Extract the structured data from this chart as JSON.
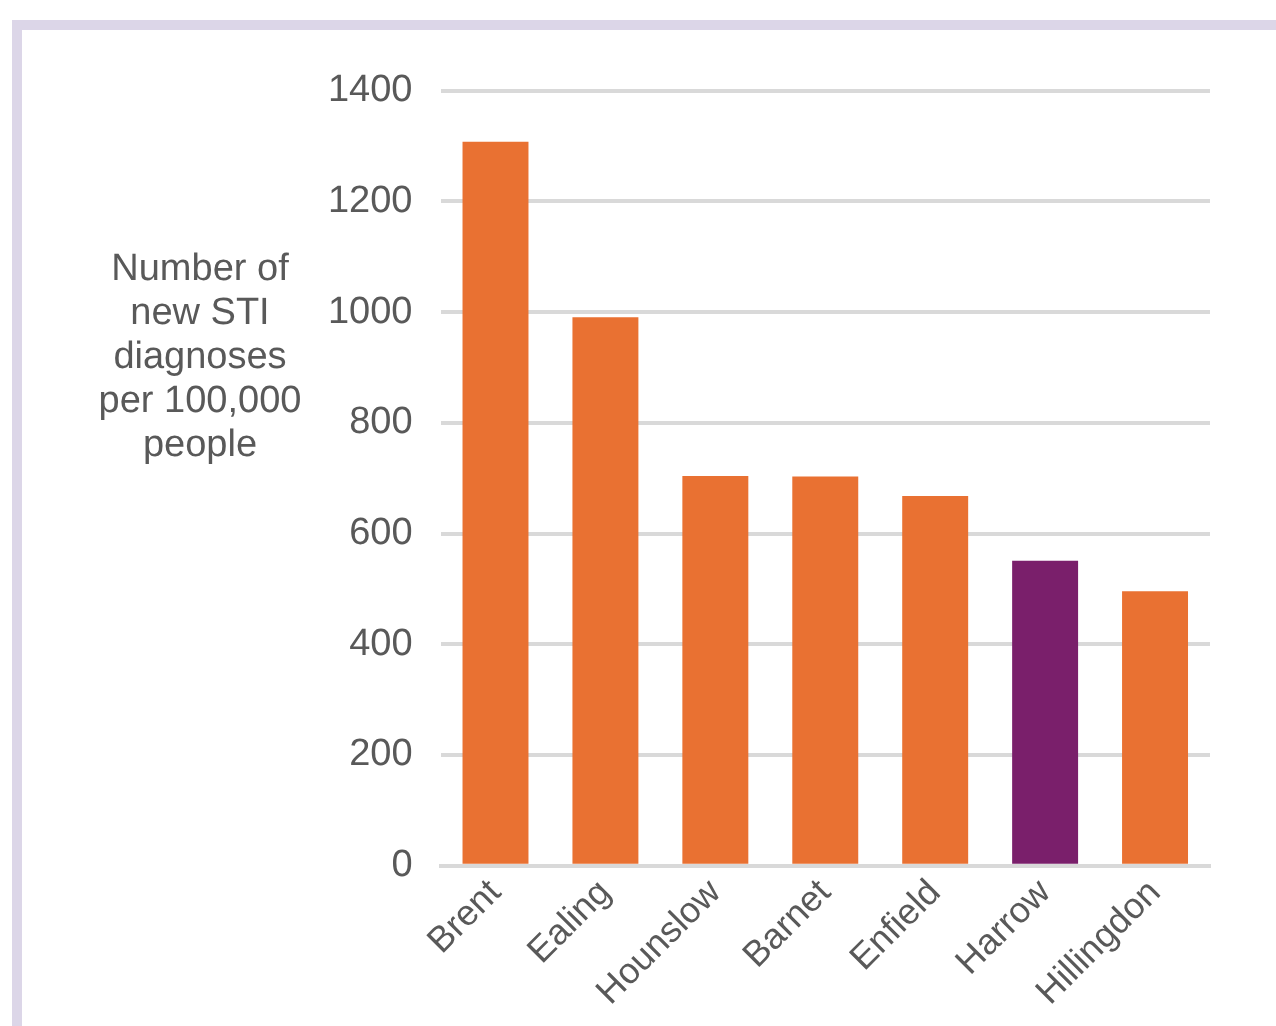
{
  "chart_data": {
    "type": "bar",
    "ylabel": "Number of new STI diagnoses per 100,000 people",
    "categories": [
      "Brent",
      "Ealing",
      "Hounslow",
      "Barnet",
      "Enfield",
      "Harrow",
      "Hillingdon"
    ],
    "values": [
      1308,
      991,
      704,
      703,
      668,
      551,
      496
    ],
    "colors": [
      "#e97132",
      "#e97132",
      "#e97132",
      "#e97132",
      "#e97132",
      "#7a1f6b",
      "#e97132"
    ],
    "ylim": [
      0,
      1400
    ],
    "yticks": [
      0,
      200,
      400,
      600,
      800,
      1000,
      1200,
      1400
    ],
    "grid": "y",
    "legend": false
  }
}
